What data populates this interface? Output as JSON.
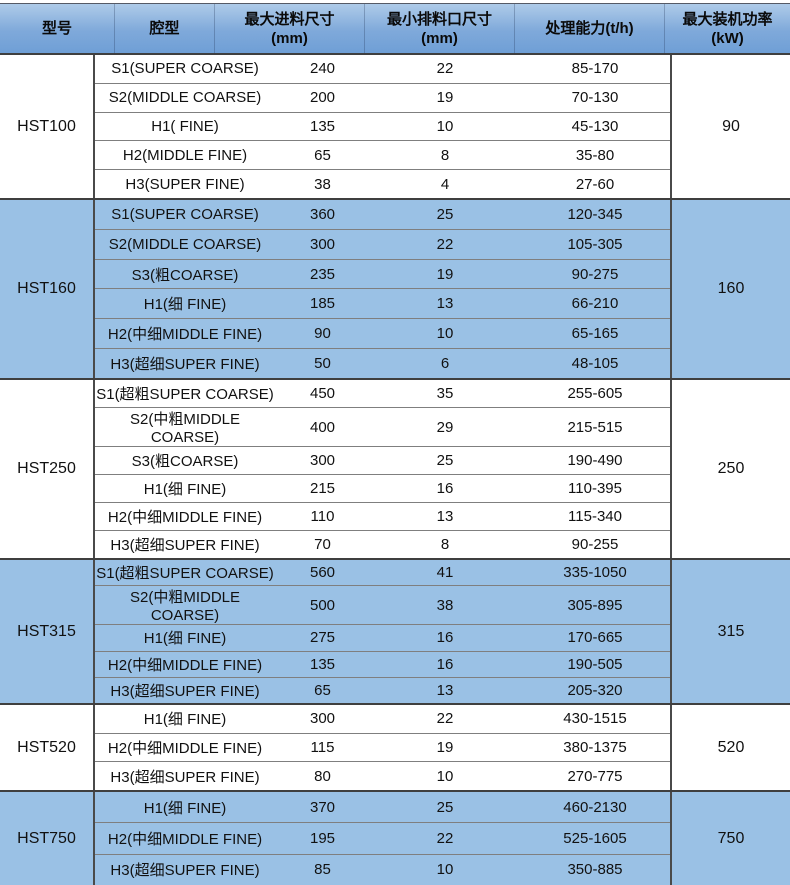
{
  "columns": [
    {
      "label": "型号",
      "sub": ""
    },
    {
      "label": "腔型",
      "sub": ""
    },
    {
      "label": "最大进料尺寸",
      "sub": "(mm)"
    },
    {
      "label": "最小排料口尺寸",
      "sub": "(mm)"
    },
    {
      "label": "处理能力(t/h)",
      "sub": ""
    },
    {
      "label": "最大装机功率",
      "sub": "(kW)"
    }
  ],
  "groups": [
    {
      "model": "HST100",
      "shade": "white",
      "power": "90",
      "rows": [
        {
          "cavity": "S1(SUPER COARSE)",
          "feed": "240",
          "discharge": "22",
          "capacity": "85-170"
        },
        {
          "cavity": "S2(MIDDLE COARSE)",
          "feed": "200",
          "discharge": "19",
          "capacity": "70-130"
        },
        {
          "cavity": "H1( FINE)",
          "feed": "135",
          "discharge": "10",
          "capacity": "45-130"
        },
        {
          "cavity": "H2(MIDDLE FINE)",
          "feed": "65",
          "discharge": "8",
          "capacity": "35-80"
        },
        {
          "cavity": "H3(SUPER FINE)",
          "feed": "38",
          "discharge": "4",
          "capacity": "27-60"
        }
      ]
    },
    {
      "model": "HST160",
      "shade": "blue",
      "power": "160",
      "rows": [
        {
          "cavity": "S1(SUPER COARSE)",
          "feed": "360",
          "discharge": "25",
          "capacity": "120-345"
        },
        {
          "cavity": "S2(MIDDLE COARSE)",
          "feed": "300",
          "discharge": "22",
          "capacity": "105-305"
        },
        {
          "cavity": "S3(粗COARSE)",
          "feed": "235",
          "discharge": "19",
          "capacity": "90-275"
        },
        {
          "cavity": "H1(细 FINE)",
          "feed": "185",
          "discharge": "13",
          "capacity": "66-210"
        },
        {
          "cavity": "H2(中细MIDDLE FINE)",
          "feed": "90",
          "discharge": "10",
          "capacity": "65-165"
        },
        {
          "cavity": "H3(超细SUPER FINE)",
          "feed": "50",
          "discharge": "6",
          "capacity": "48-105"
        }
      ]
    },
    {
      "model": "HST250",
      "shade": "white",
      "power": "250",
      "rows": [
        {
          "cavity": "S1(超粗SUPER COARSE)",
          "feed": "450",
          "discharge": "35",
          "capacity": "255-605"
        },
        {
          "cavity": "S2(中粗MIDDLE COARSE)",
          "feed": "400",
          "discharge": "29",
          "capacity": "215-515"
        },
        {
          "cavity": "S3(粗COARSE)",
          "feed": "300",
          "discharge": "25",
          "capacity": "190-490"
        },
        {
          "cavity": "H1(细 FINE)",
          "feed": "215",
          "discharge": "16",
          "capacity": "110-395"
        },
        {
          "cavity": "H2(中细MIDDLE FINE)",
          "feed": "110",
          "discharge": "13",
          "capacity": "115-340"
        },
        {
          "cavity": "H3(超细SUPER FINE)",
          "feed": "70",
          "discharge": "8",
          "capacity": "90-255"
        }
      ]
    },
    {
      "model": "HST315",
      "shade": "blue",
      "power": "315",
      "rows": [
        {
          "cavity": "S1(超粗SUPER COARSE)",
          "feed": "560",
          "discharge": "41",
          "capacity": "335-1050"
        },
        {
          "cavity": "S2(中粗MIDDLE COARSE)",
          "feed": "500",
          "discharge": "38",
          "capacity": "305-895"
        },
        {
          "cavity": "H1(细 FINE)",
          "feed": "275",
          "discharge": "16",
          "capacity": "170-665"
        },
        {
          "cavity": "H2(中细MIDDLE FINE)",
          "feed": "135",
          "discharge": "16",
          "capacity": "190-505"
        },
        {
          "cavity": "H3(超细SUPER FINE)",
          "feed": "65",
          "discharge": "13",
          "capacity": "205-320"
        }
      ]
    },
    {
      "model": "HST520",
      "shade": "white",
      "power": "520",
      "rows": [
        {
          "cavity": "H1(细 FINE)",
          "feed": "300",
          "discharge": "22",
          "capacity": "430-1515"
        },
        {
          "cavity": "H2(中细MIDDLE FINE)",
          "feed": "115",
          "discharge": "19",
          "capacity": "380-1375"
        },
        {
          "cavity": "H3(超细SUPER FINE)",
          "feed": "80",
          "discharge": "10",
          "capacity": "270-775"
        }
      ]
    },
    {
      "model": "HST750",
      "shade": "blue",
      "power": "750",
      "rows": [
        {
          "cavity": "H1(细 FINE)",
          "feed": "370",
          "discharge": "25",
          "capacity": "460-2130"
        },
        {
          "cavity": "H2(中细MIDDLE FINE)",
          "feed": "195",
          "discharge": "22",
          "capacity": "525-1605"
        },
        {
          "cavity": "H3(超细SUPER FINE)",
          "feed": "85",
          "discharge": "10",
          "capacity": "350-885"
        }
      ]
    }
  ],
  "colors": {
    "header_top": "#aecbe9",
    "header_bottom": "#6f9fd6",
    "group_blue": "#9ac1e5",
    "group_white": "#ffffff",
    "row_line": "#7f7f7f",
    "strong_line": "#3f3f3f",
    "text": "#111111"
  }
}
